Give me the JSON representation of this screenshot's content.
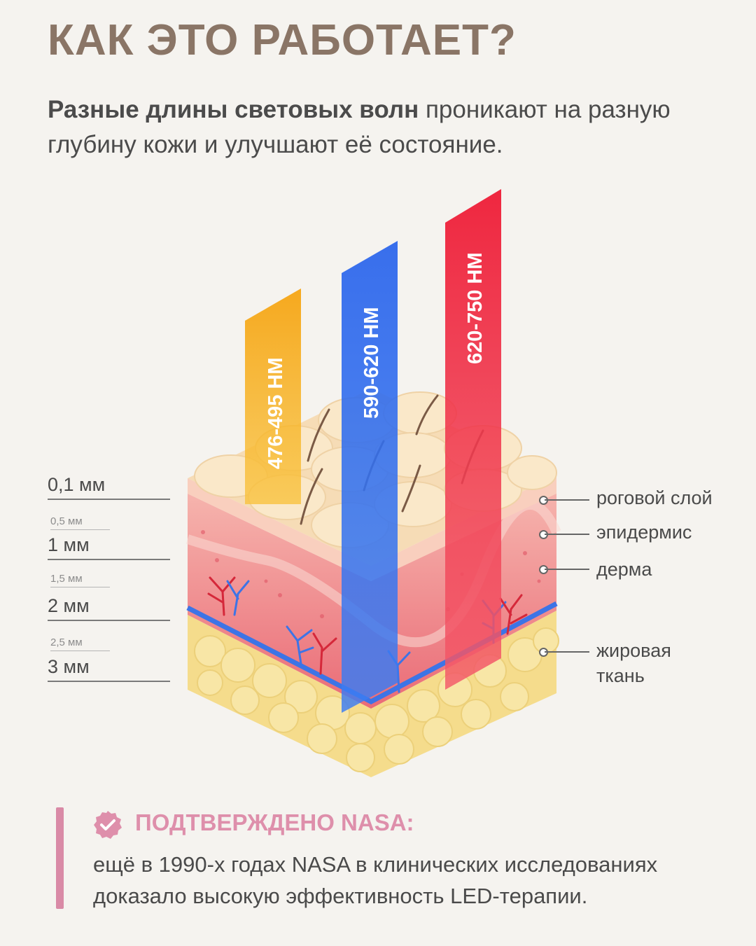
{
  "header": {
    "title": "КАК ЭТО РАБОТАЕТ?",
    "subtitle_bold": "Разные длины световых волн",
    "subtitle_rest": " проникают на разную глубину кожи и улучшают её состояние."
  },
  "depth_scale": {
    "major": [
      "0,1 мм",
      "1 мм",
      "2 мм",
      "3 мм"
    ],
    "minor": [
      "0,5 мм",
      "1,5 мм",
      "2,5 мм"
    ]
  },
  "beams": [
    {
      "label": "476-495 НМ",
      "color": "#f7a51d"
    },
    {
      "label": "590-620 НМ",
      "color": "#2e6ef0"
    },
    {
      "label": "620-750 НМ",
      "color": "#f0203a"
    }
  ],
  "layers": [
    {
      "label": "роговой слой"
    },
    {
      "label": "эпидермис"
    },
    {
      "label": "дерма"
    },
    {
      "label": "жировая ткань"
    }
  ],
  "nasa": {
    "heading": "ПОДТВЕРЖДЕНО NASA:",
    "text": "ещё в 1990-х годах NASA в клинических исследованиях доказало высокую эффективность LED-терапии.",
    "accent": "#de8fab"
  }
}
